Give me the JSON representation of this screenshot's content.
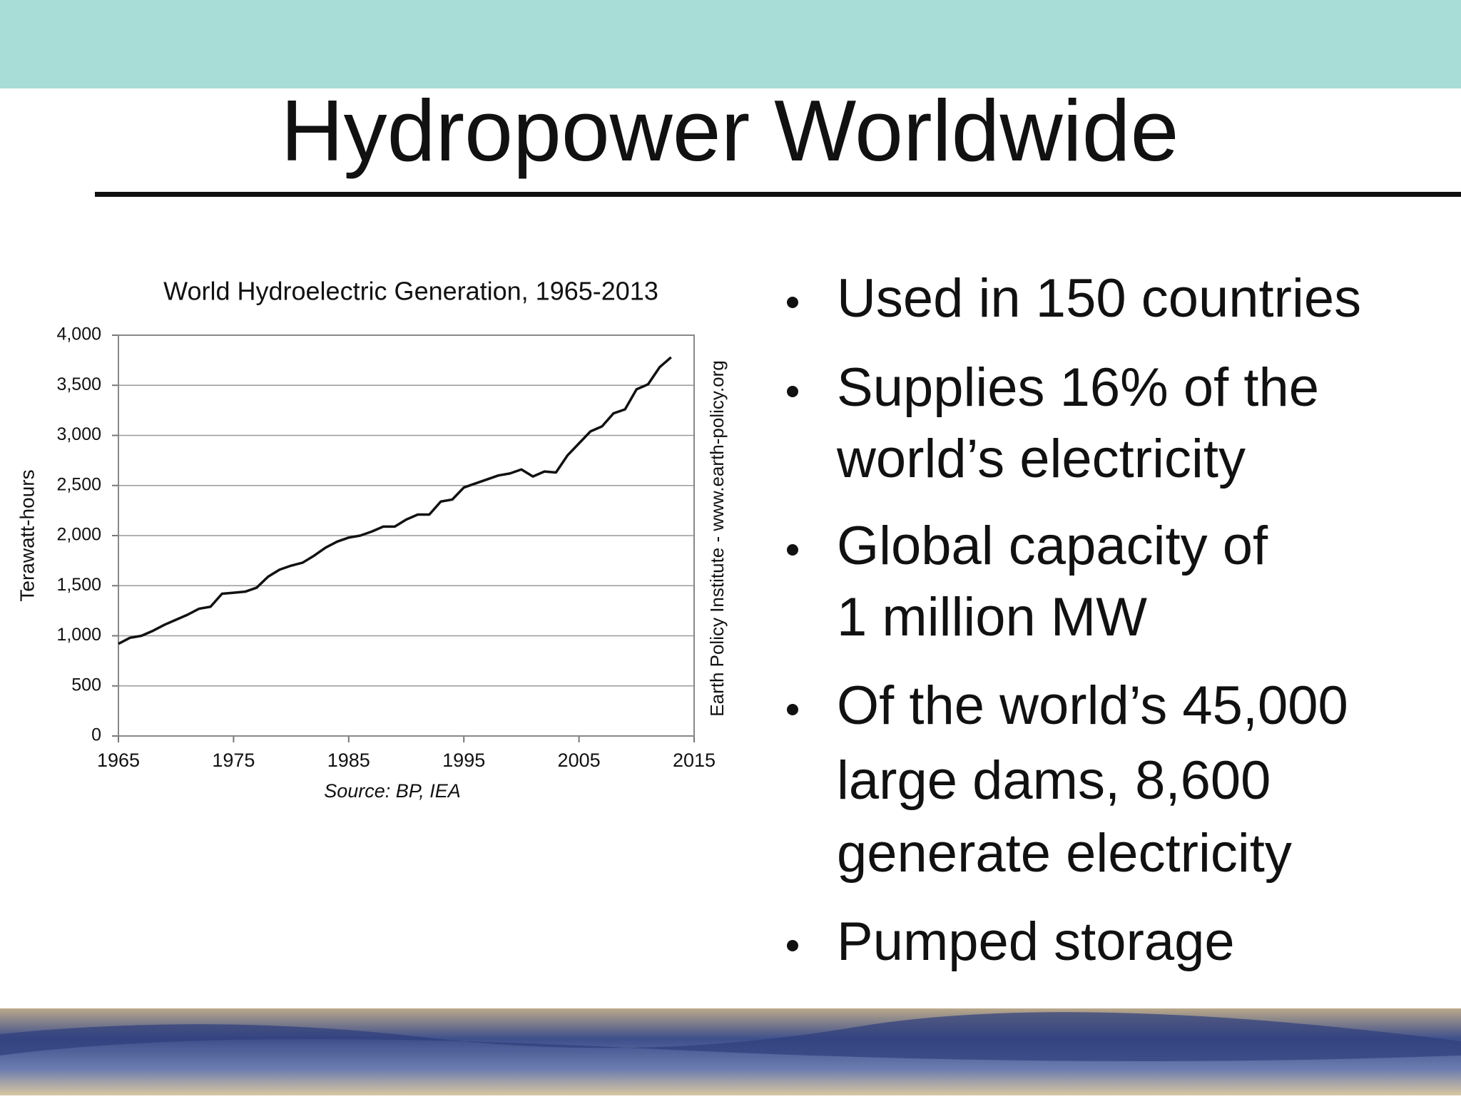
{
  "slide": {
    "title": "Hydropower Worldwide",
    "bullets": [
      [
        "Used in 150 countries"
      ],
      [
        "Supplies 16% of the",
        "world’s electricity"
      ],
      [
        "Global capacity of",
        "1 million MW"
      ],
      [
        "Of the world’s 45,000",
        "large dams, 8,600",
        "generate electricity"
      ],
      [
        "Pumped storage"
      ]
    ]
  },
  "chart_data": {
    "type": "line",
    "title": "World Hydroelectric Generation, 1965-2013",
    "y_label": "Terawatt-hours",
    "source": "Source: BP, IEA",
    "credit": "Earth Policy Institute - www.earth-policy.org",
    "x": [
      1965,
      1966,
      1967,
      1968,
      1969,
      1970,
      1971,
      1972,
      1973,
      1974,
      1975,
      1976,
      1977,
      1978,
      1979,
      1980,
      1981,
      1982,
      1983,
      1984,
      1985,
      1986,
      1987,
      1988,
      1989,
      1990,
      1991,
      1992,
      1993,
      1994,
      1995,
      1996,
      1997,
      1998,
      1999,
      2000,
      2001,
      2002,
      2003,
      2004,
      2005,
      2006,
      2007,
      2008,
      2009,
      2010,
      2011,
      2012,
      2013
    ],
    "values": [
      920,
      980,
      1000,
      1050,
      1110,
      1160,
      1210,
      1270,
      1290,
      1420,
      1430,
      1440,
      1480,
      1590,
      1660,
      1700,
      1730,
      1800,
      1880,
      1940,
      1980,
      2000,
      2040,
      2090,
      2090,
      2160,
      2210,
      2210,
      2340,
      2360,
      2480,
      2520,
      2560,
      2600,
      2620,
      2660,
      2590,
      2640,
      2630,
      2800,
      2920,
      3040,
      3090,
      3220,
      3260,
      3460,
      3510,
      3680,
      3780
    ],
    "color": "#111111",
    "xlim": [
      1965,
      2015
    ],
    "xticks": [
      1965,
      1975,
      1985,
      1995,
      2005,
      2015
    ],
    "ylim": [
      0,
      4000
    ],
    "yticks": [
      0,
      500,
      {
        "value": 1000,
        "label": "1,000"
      },
      {
        "value": 1500,
        "label": "1,500"
      },
      {
        "value": 2000,
        "label": "2,000"
      },
      {
        "value": 2500,
        "label": "2,500"
      },
      {
        "value": 3000,
        "label": "3,000"
      },
      {
        "value": 3500,
        "label": "3,500"
      },
      {
        "value": 4000,
        "label": "4,000"
      }
    ],
    "grid": true
  }
}
